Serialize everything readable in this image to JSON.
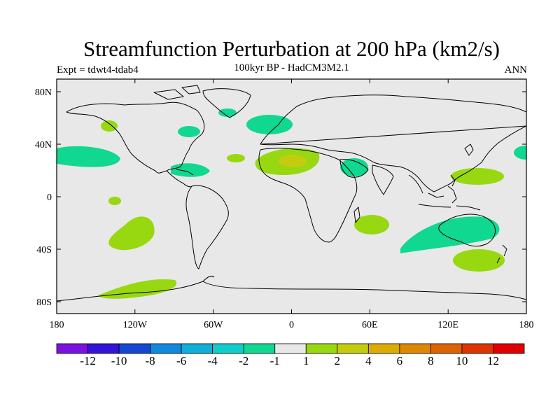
{
  "title": "Streamfunction Perturbation at 200 hPa (km2/s)",
  "expt": "Expt = tdwt4-tdab4",
  "subtitle": "100kyr BP - HadCM3M2.1",
  "season": "ANN",
  "lat_ticks": [
    "80N",
    "40N",
    "0",
    "40S",
    "80S"
  ],
  "lon_ticks": [
    "180",
    "120W",
    "60W",
    "0",
    "60E",
    "120E",
    "180"
  ],
  "colorbar": {
    "colors": [
      "#7b12e0",
      "#3414d8",
      "#1448d2",
      "#1088dc",
      "#10aed8",
      "#10ccca",
      "#10d890",
      "#e8e8e8",
      "#98d810",
      "#c4cc10",
      "#dcac04",
      "#dc8804",
      "#dc6404",
      "#dc3404",
      "#e00000"
    ],
    "labels": [
      "-12",
      "-10",
      "-8",
      "-6",
      "-4",
      "-2",
      "-1",
      "1",
      "2",
      "4",
      "6",
      "8",
      "10",
      "12"
    ]
  },
  "colors": {
    "background": "#e8e8e8",
    "coast": "#000000"
  }
}
